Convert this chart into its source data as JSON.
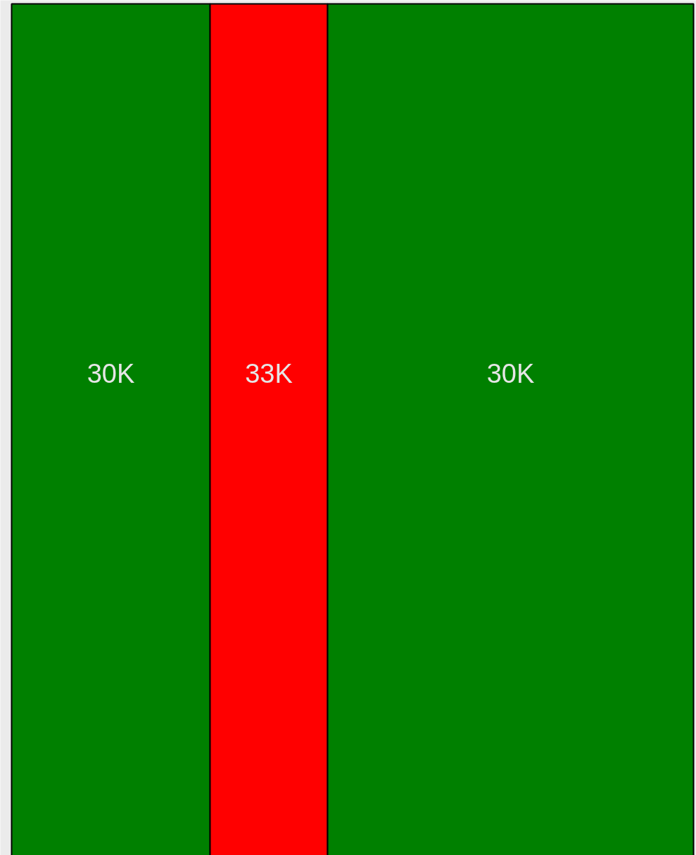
{
  "chart_data": {
    "type": "other",
    "categories": [
      null,
      null,
      null
    ],
    "values": [
      30000,
      33000,
      30000
    ],
    "value_labels": [
      "30K",
      "33K",
      "30K"
    ],
    "colors": [
      "#008000",
      "#ff0000",
      "#008000"
    ]
  }
}
